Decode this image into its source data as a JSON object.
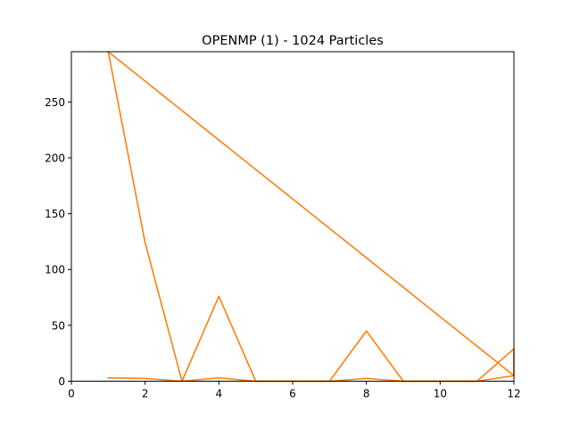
{
  "chart_data": {
    "type": "line",
    "title": "OPENMP (1) - 1024 Particles",
    "xlabel": "",
    "ylabel": "",
    "xlim": [
      0,
      12
    ],
    "ylim": [
      0,
      295
    ],
    "grid": false,
    "legend": "none",
    "x_ticks": [
      0,
      2,
      4,
      6,
      8,
      10,
      12
    ],
    "y_ticks": [
      0,
      50,
      100,
      150,
      200,
      250
    ],
    "color": "#ff7f0e",
    "series": [
      {
        "points": [
          [
            1,
            295
          ],
          [
            2,
            124
          ],
          [
            3,
            0
          ],
          [
            4,
            76
          ],
          [
            5,
            0
          ],
          [
            6,
            0
          ],
          [
            7,
            0
          ],
          [
            8,
            45
          ],
          [
            9,
            0
          ],
          [
            10,
            0
          ],
          [
            11,
            0
          ],
          [
            12,
            29
          ],
          [
            12,
            5
          ],
          [
            1,
            295
          ]
        ]
      },
      {
        "points": [
          [
            1,
            3
          ],
          [
            2,
            2.5
          ],
          [
            3,
            0
          ],
          [
            4,
            3
          ],
          [
            5,
            0
          ],
          [
            6,
            0
          ],
          [
            7,
            0
          ],
          [
            8,
            2.5
          ],
          [
            9,
            0
          ],
          [
            10,
            0
          ],
          [
            11,
            0
          ],
          [
            12,
            5
          ]
        ]
      }
    ]
  }
}
